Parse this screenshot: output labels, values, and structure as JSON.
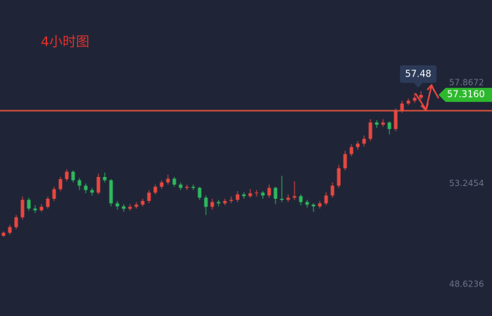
{
  "chart_data": {
    "type": "candlestick",
    "title": "4小时图",
    "ylim": [
      47.17,
      61.67
    ],
    "yticks": [
      48.6236,
      53.2454,
      57.8672
    ],
    "up_color": "#e8473f",
    "down_color": "#2eb85c",
    "level_color": "#e0523f",
    "level": 56.59,
    "last_price": {
      "value": 57.316,
      "label": "57.3160"
    },
    "tooltip": 57.48,
    "ohlc": [
      [
        50.85,
        51.05,
        50.8,
        50.99
      ],
      [
        50.99,
        51.35,
        50.9,
        51.25
      ],
      [
        51.25,
        51.8,
        51.15,
        51.7
      ],
      [
        51.7,
        52.65,
        51.6,
        52.5
      ],
      [
        52.5,
        52.6,
        52.0,
        52.1
      ],
      [
        52.1,
        52.25,
        51.9,
        52.02
      ],
      [
        52.02,
        52.3,
        51.95,
        52.18
      ],
      [
        52.18,
        52.65,
        52.1,
        52.55
      ],
      [
        52.55,
        53.1,
        52.45,
        52.99
      ],
      [
        52.99,
        53.55,
        52.9,
        53.45
      ],
      [
        53.45,
        53.9,
        53.35,
        53.79
      ],
      [
        53.79,
        53.85,
        53.3,
        53.4
      ],
      [
        53.4,
        53.5,
        52.95,
        53.15
      ],
      [
        53.15,
        53.25,
        52.8,
        52.95
      ],
      [
        52.95,
        53.05,
        52.7,
        52.83
      ],
      [
        52.83,
        53.7,
        52.75,
        53.55
      ],
      [
        53.55,
        53.75,
        53.3,
        53.4
      ],
      [
        53.4,
        53.45,
        52.2,
        52.34
      ],
      [
        52.34,
        52.45,
        52.05,
        52.2
      ],
      [
        52.2,
        52.3,
        51.95,
        52.09
      ],
      [
        52.09,
        52.3,
        52.0,
        52.18
      ],
      [
        52.18,
        52.4,
        52.1,
        52.28
      ],
      [
        52.28,
        52.55,
        52.2,
        52.45
      ],
      [
        52.45,
        52.95,
        52.35,
        52.83
      ],
      [
        52.83,
        53.2,
        52.75,
        53.1
      ],
      [
        53.1,
        53.4,
        53.0,
        53.3
      ],
      [
        53.3,
        53.65,
        53.2,
        53.47
      ],
      [
        53.47,
        53.55,
        53.1,
        53.2
      ],
      [
        53.2,
        53.3,
        52.95,
        53.05
      ],
      [
        53.05,
        53.2,
        52.95,
        53.1
      ],
      [
        53.1,
        53.2,
        52.95,
        53.05
      ],
      [
        53.05,
        53.1,
        52.5,
        52.6
      ],
      [
        52.6,
        52.7,
        51.8,
        52.18
      ],
      [
        52.18,
        52.55,
        52.05,
        52.4
      ],
      [
        52.4,
        52.5,
        52.2,
        52.34
      ],
      [
        52.34,
        52.55,
        52.25,
        52.45
      ],
      [
        52.45,
        52.65,
        52.35,
        52.5
      ],
      [
        52.5,
        52.9,
        52.4,
        52.75
      ],
      [
        52.75,
        52.85,
        52.55,
        52.67
      ],
      [
        52.67,
        53.0,
        52.6,
        52.8
      ],
      [
        52.8,
        52.95,
        52.65,
        52.83
      ],
      [
        52.83,
        52.9,
        52.55,
        52.7
      ],
      [
        52.7,
        53.2,
        52.6,
        53.05
      ],
      [
        53.05,
        53.1,
        52.3,
        52.55
      ],
      [
        52.55,
        53.6,
        52.4,
        52.5
      ],
      [
        52.5,
        52.75,
        52.4,
        52.6
      ],
      [
        52.6,
        53.35,
        52.5,
        52.67
      ],
      [
        52.67,
        52.75,
        52.25,
        52.4
      ],
      [
        52.4,
        52.5,
        52.15,
        52.28
      ],
      [
        52.28,
        52.35,
        51.95,
        52.2
      ],
      [
        52.2,
        52.45,
        52.1,
        52.34
      ],
      [
        52.34,
        52.85,
        52.25,
        52.7
      ],
      [
        52.7,
        53.3,
        52.6,
        53.15
      ],
      [
        53.15,
        54.1,
        53.05,
        53.95
      ],
      [
        53.95,
        54.75,
        53.85,
        54.6
      ],
      [
        54.6,
        55.05,
        54.5,
        54.92
      ],
      [
        54.92,
        55.2,
        54.8,
        55.08
      ],
      [
        55.08,
        55.45,
        54.95,
        55.3
      ],
      [
        55.3,
        56.2,
        55.2,
        56.05
      ],
      [
        56.05,
        56.15,
        55.8,
        55.95
      ],
      [
        55.95,
        56.2,
        55.85,
        56.05
      ],
      [
        56.05,
        56.1,
        55.5,
        55.75
      ],
      [
        55.75,
        56.7,
        55.65,
        56.59
      ],
      [
        56.59,
        57.05,
        56.5,
        56.92
      ],
      [
        56.92,
        57.15,
        56.85,
        57.05
      ],
      [
        57.05,
        57.4,
        56.95,
        57.18
      ],
      [
        57.18,
        57.48,
        57.1,
        57.316
      ]
    ]
  }
}
